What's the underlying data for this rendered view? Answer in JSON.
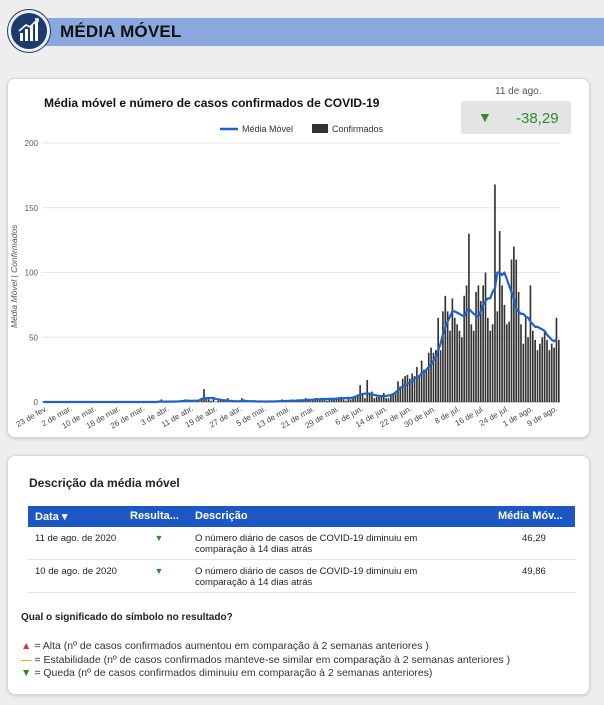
{
  "header": {
    "title": "MÉDIA MÓVEL",
    "logo_icon": "bar-chart-icon"
  },
  "kpi": {
    "date": "11 de ago.",
    "arrow": "▼",
    "value": "-38,29",
    "color": "#2e8b2e"
  },
  "colors": {
    "bars": "#333333",
    "line": "#1f63c6",
    "header_bar": "#8aa8dd",
    "table_header": "#1c57c4"
  },
  "chart_data": {
    "type": "bar",
    "title": "Média móvel e número de casos confirmados de COVID-19",
    "ylabel": "Média Móvel | Confirmados",
    "ylim": [
      0,
      200
    ],
    "yticks": [
      "0",
      "50",
      "100",
      "150",
      "200"
    ],
    "legend": [
      {
        "name": "Média Móvel",
        "kind": "line"
      },
      {
        "name": "Confirmados",
        "kind": "bar"
      }
    ],
    "legend_position": "top-center",
    "x_tick_labels": [
      "23 de fev.",
      "2 de mar.",
      "10 de mar.",
      "18 de mar.",
      "26 de mar.",
      "3 de abr.",
      "11 de abr.",
      "19 de abr.",
      "27 de abr.",
      "5 de mai.",
      "13 de mai.",
      "21 de mai.",
      "29 de mai.",
      "6 de jun.",
      "14 de jun.",
      "22 de jun.",
      "30 de jun.",
      "8 de jul.",
      "16 de jul.",
      "24 de jul.",
      "1 de ago.",
      "9 de ago."
    ],
    "series": [
      {
        "name": "Confirmados",
        "values": [
          0,
          0,
          0,
          0,
          0,
          0,
          0,
          0,
          0,
          0,
          0,
          0,
          0,
          0,
          0,
          0,
          0,
          0,
          0,
          0,
          0,
          0,
          0,
          0,
          0,
          0,
          0,
          0,
          0,
          0,
          0,
          0,
          0,
          0,
          0,
          0,
          0,
          0,
          0,
          0,
          0,
          0,
          0,
          0,
          0,
          0,
          0,
          0,
          0,
          0,
          2,
          0,
          0,
          0,
          0,
          0,
          0,
          0,
          1,
          0,
          2,
          2,
          1,
          0,
          0,
          1,
          0,
          2,
          10,
          3,
          2,
          1,
          3,
          0,
          1,
          2,
          2,
          1,
          3,
          0,
          0,
          0,
          0,
          1,
          3,
          2,
          1,
          0,
          1,
          1,
          0,
          0,
          1,
          0,
          0,
          1,
          0,
          0,
          1,
          1,
          1,
          2,
          1,
          0,
          0,
          2,
          1,
          1,
          2,
          1,
          1,
          3,
          2,
          1,
          1,
          3,
          3,
          2,
          2,
          2,
          1,
          3,
          2,
          3,
          2,
          3,
          4,
          2,
          1,
          4,
          2,
          3,
          5,
          4,
          13,
          7,
          3,
          17,
          6,
          8,
          3,
          4,
          4,
          5,
          7,
          3,
          3,
          6,
          6,
          7,
          16,
          12,
          18,
          20,
          21,
          18,
          22,
          20,
          27,
          20,
          32,
          25,
          24,
          38,
          42,
          38,
          40,
          65,
          40,
          70,
          82,
          70,
          55,
          80,
          65,
          60,
          55,
          50,
          82,
          90,
          130,
          60,
          55,
          85,
          90,
          78,
          90,
          100,
          65,
          55,
          60,
          168,
          70,
          132,
          90,
          75,
          60,
          62,
          110,
          120,
          110,
          85,
          60,
          45,
          65,
          50,
          90,
          55,
          48,
          40,
          45,
          50,
          55,
          48,
          40,
          45,
          42,
          65,
          48
        ]
      },
      {
        "name": "Média Móvel",
        "values": [
          0,
          0,
          0,
          0,
          0,
          0,
          0,
          0,
          0,
          0,
          0,
          0,
          0,
          0,
          0,
          0,
          0,
          0,
          0,
          0,
          0,
          0,
          0,
          0,
          0,
          0,
          0,
          0,
          0,
          0,
          0,
          0,
          0,
          0,
          0,
          0,
          0,
          0,
          0,
          0,
          0,
          0,
          0,
          0,
          0,
          0,
          0,
          0,
          0,
          0.3,
          0.3,
          0.3,
          0.3,
          0.3,
          0.3,
          0.3,
          0.4,
          0.4,
          0.6,
          0.8,
          0.8,
          0.9,
          0.9,
          0.9,
          1,
          1,
          1.2,
          2.5,
          2.8,
          2.9,
          3,
          3.1,
          3.1,
          2.4,
          2,
          1.8,
          1.4,
          1.2,
          1.1,
          0.9,
          0.8,
          0.6,
          0.5,
          0.6,
          0.7,
          0.8,
          0.8,
          0.6,
          0.6,
          0.6,
          0.5,
          0.4,
          0.4,
          0.4,
          0.3,
          0.4,
          0.4,
          0.4,
          0.5,
          0.6,
          0.6,
          0.7,
          0.8,
          0.8,
          0.8,
          0.9,
          1,
          1.1,
          1.2,
          1.3,
          1.4,
          1.5,
          1.6,
          1.7,
          1.8,
          2,
          2.1,
          2.2,
          2.3,
          2.3,
          2.3,
          2.4,
          2.5,
          2.5,
          2.6,
          2.8,
          2.8,
          2.9,
          3,
          3,
          3.2,
          3.5,
          4,
          5,
          5.5,
          6,
          6.5,
          6.5,
          6.5,
          6,
          5.5,
          5,
          4.8,
          4.6,
          4.5,
          4.6,
          5,
          5.5,
          6,
          7.5,
          9,
          11,
          12,
          13,
          14,
          15,
          16,
          18,
          19,
          20,
          22,
          23,
          25,
          27,
          29,
          32,
          35,
          40,
          45,
          52,
          58,
          62,
          66,
          70,
          70,
          69,
          68,
          67,
          66,
          70,
          72,
          70,
          68,
          67,
          66,
          70,
          75,
          78,
          80,
          80,
          85,
          88,
          100,
          100,
          98,
          100,
          95,
          90,
          85,
          80,
          72,
          70,
          68,
          68,
          66,
          65,
          62,
          60,
          58,
          58,
          57,
          56,
          55,
          52,
          50,
          48,
          47,
          48
        ]
      }
    ]
  },
  "description": {
    "title": "Descrição da média móvel",
    "columns": [
      "Data ▾",
      "Resulta...",
      "Descrição",
      "Média Móv..."
    ],
    "rows": [
      {
        "date": "11 de ago. de 2020",
        "result": "▼",
        "desc": "O número diário de casos de COVID-19 diminuiu em comparação à 14 dias atrás",
        "mm": "46,29"
      },
      {
        "date": "10 de ago. de 2020",
        "result": "▼",
        "desc": "O número diário de casos de COVID-19 diminuiu em comparação à 14 dias atrás",
        "mm": "49,86"
      }
    ],
    "legend_title": "Qual o significado do símbolo no resultado?",
    "symbols": [
      {
        "glyph": "▲",
        "color": "#d23b2a",
        "text": " = Alta (nº de casos confirmados aumentou em comparação à 2 semanas anteriores )"
      },
      {
        "glyph": "—",
        "color": "#f0a030",
        "text": " = Estabilidade (nº de casos confirmados manteve-se similar em comparação à 2 semanas anteriores )"
      },
      {
        "glyph": "▼",
        "color": "#2e8b2e",
        "text": " = Queda (nº de casos confirmados diminuiu em comparação à 2 semanas anteriores)"
      }
    ]
  }
}
